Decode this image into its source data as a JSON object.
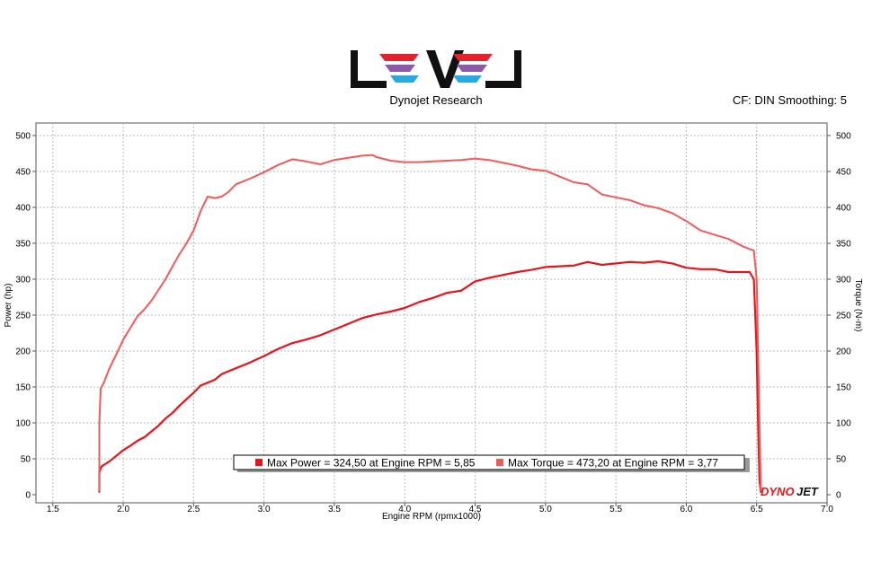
{
  "header": {
    "logo_text": "LEVEL",
    "subtitle": "Dynojet Research",
    "cf_label": "CF: DIN Smoothing: 5"
  },
  "colors": {
    "power": "#e8141b",
    "torque": "#f25a5a",
    "grid": "#b8b8b8",
    "logo_red": "#e3232b",
    "logo_purple": "#8e5aa8",
    "logo_blue": "#29a9df"
  },
  "legend": {
    "power": "Max Power = 324,50 at Engine RPM = 5,85",
    "torque": "Max Torque = 473,20 at Engine RPM = 3,77"
  },
  "watermark": {
    "dyno": "DYNO",
    "jet": "JET"
  },
  "chart_data": {
    "type": "line",
    "xlabel": "Engine RPM (rpmx1000)",
    "ylabel": "Power (hp)",
    "y2label": "Torque (N-m)",
    "xlim": [
      1.38,
      7.0
    ],
    "ylim": [
      0,
      520
    ],
    "y2lim": [
      0,
      520
    ],
    "xticks": [
      "1.5",
      "2.0",
      "2.5",
      "3.0",
      "3.5",
      "4.0",
      "4.5",
      "5.0",
      "5.5",
      "6.0",
      "6.5",
      "7.0"
    ],
    "yticks": [
      "0",
      "50",
      "100",
      "150",
      "200",
      "250",
      "300",
      "350",
      "400",
      "450",
      "500"
    ],
    "grid": true,
    "legend_position": "bottom-center",
    "series": [
      {
        "key": "power",
        "x": [
          1.83,
          1.83,
          1.84,
          1.85,
          1.9,
          1.95,
          2.0,
          2.05,
          2.1,
          2.15,
          2.2,
          2.25,
          2.3,
          2.35,
          2.4,
          2.45,
          2.5,
          2.55,
          2.6,
          2.65,
          2.7,
          2.75,
          2.8,
          2.85,
          2.9,
          3.0,
          3.1,
          3.2,
          3.3,
          3.4,
          3.5,
          3.6,
          3.7,
          3.8,
          3.9,
          4.0,
          4.1,
          4.2,
          4.3,
          4.4,
          4.5,
          4.6,
          4.7,
          4.8,
          4.9,
          5.0,
          5.1,
          5.2,
          5.3,
          5.4,
          5.5,
          5.6,
          5.7,
          5.8,
          5.9,
          6.0,
          6.1,
          6.2,
          6.3,
          6.4,
          6.45,
          6.48,
          6.5,
          6.51,
          6.52,
          6.53
        ],
        "y": [
          3,
          30,
          37,
          40,
          46,
          54,
          62,
          68,
          75,
          80,
          88,
          96,
          106,
          114,
          124,
          133,
          142,
          152,
          156,
          160,
          168,
          172,
          176,
          180,
          184,
          193,
          203,
          211,
          216,
          222,
          230,
          238,
          246,
          251,
          255,
          260,
          268,
          274,
          281,
          284,
          297,
          302,
          306,
          310,
          313,
          317,
          318,
          319,
          324,
          320,
          322,
          324,
          323,
          325,
          322,
          316,
          314,
          314,
          310,
          310,
          310,
          300,
          200,
          100,
          20,
          3
        ]
      },
      {
        "key": "torque",
        "x": [
          1.83,
          1.83,
          1.84,
          1.86,
          1.9,
          1.95,
          2.0,
          2.05,
          2.1,
          2.15,
          2.2,
          2.25,
          2.3,
          2.35,
          2.4,
          2.45,
          2.5,
          2.55,
          2.6,
          2.65,
          2.7,
          2.75,
          2.8,
          2.85,
          2.9,
          3.0,
          3.1,
          3.2,
          3.3,
          3.4,
          3.5,
          3.6,
          3.7,
          3.77,
          3.8,
          3.9,
          4.0,
          4.1,
          4.2,
          4.3,
          4.4,
          4.5,
          4.6,
          4.7,
          4.8,
          4.9,
          5.0,
          5.1,
          5.2,
          5.3,
          5.4,
          5.5,
          5.6,
          5.7,
          5.8,
          5.9,
          6.0,
          6.1,
          6.2,
          6.3,
          6.4,
          6.45,
          6.48,
          6.5,
          6.51,
          6.52,
          6.53
        ],
        "y": [
          5,
          100,
          148,
          155,
          175,
          195,
          216,
          232,
          248,
          258,
          270,
          285,
          300,
          318,
          335,
          350,
          368,
          395,
          415,
          413,
          415,
          422,
          432,
          436,
          440,
          449,
          459,
          467,
          464,
          460,
          466,
          469,
          472,
          473,
          470,
          465,
          463,
          463,
          464,
          465,
          466,
          468,
          466,
          462,
          458,
          453,
          451,
          443,
          435,
          432,
          418,
          414,
          410,
          403,
          399,
          392,
          381,
          368,
          362,
          356,
          346,
          342,
          340,
          300,
          200,
          100,
          5
        ]
      }
    ]
  }
}
